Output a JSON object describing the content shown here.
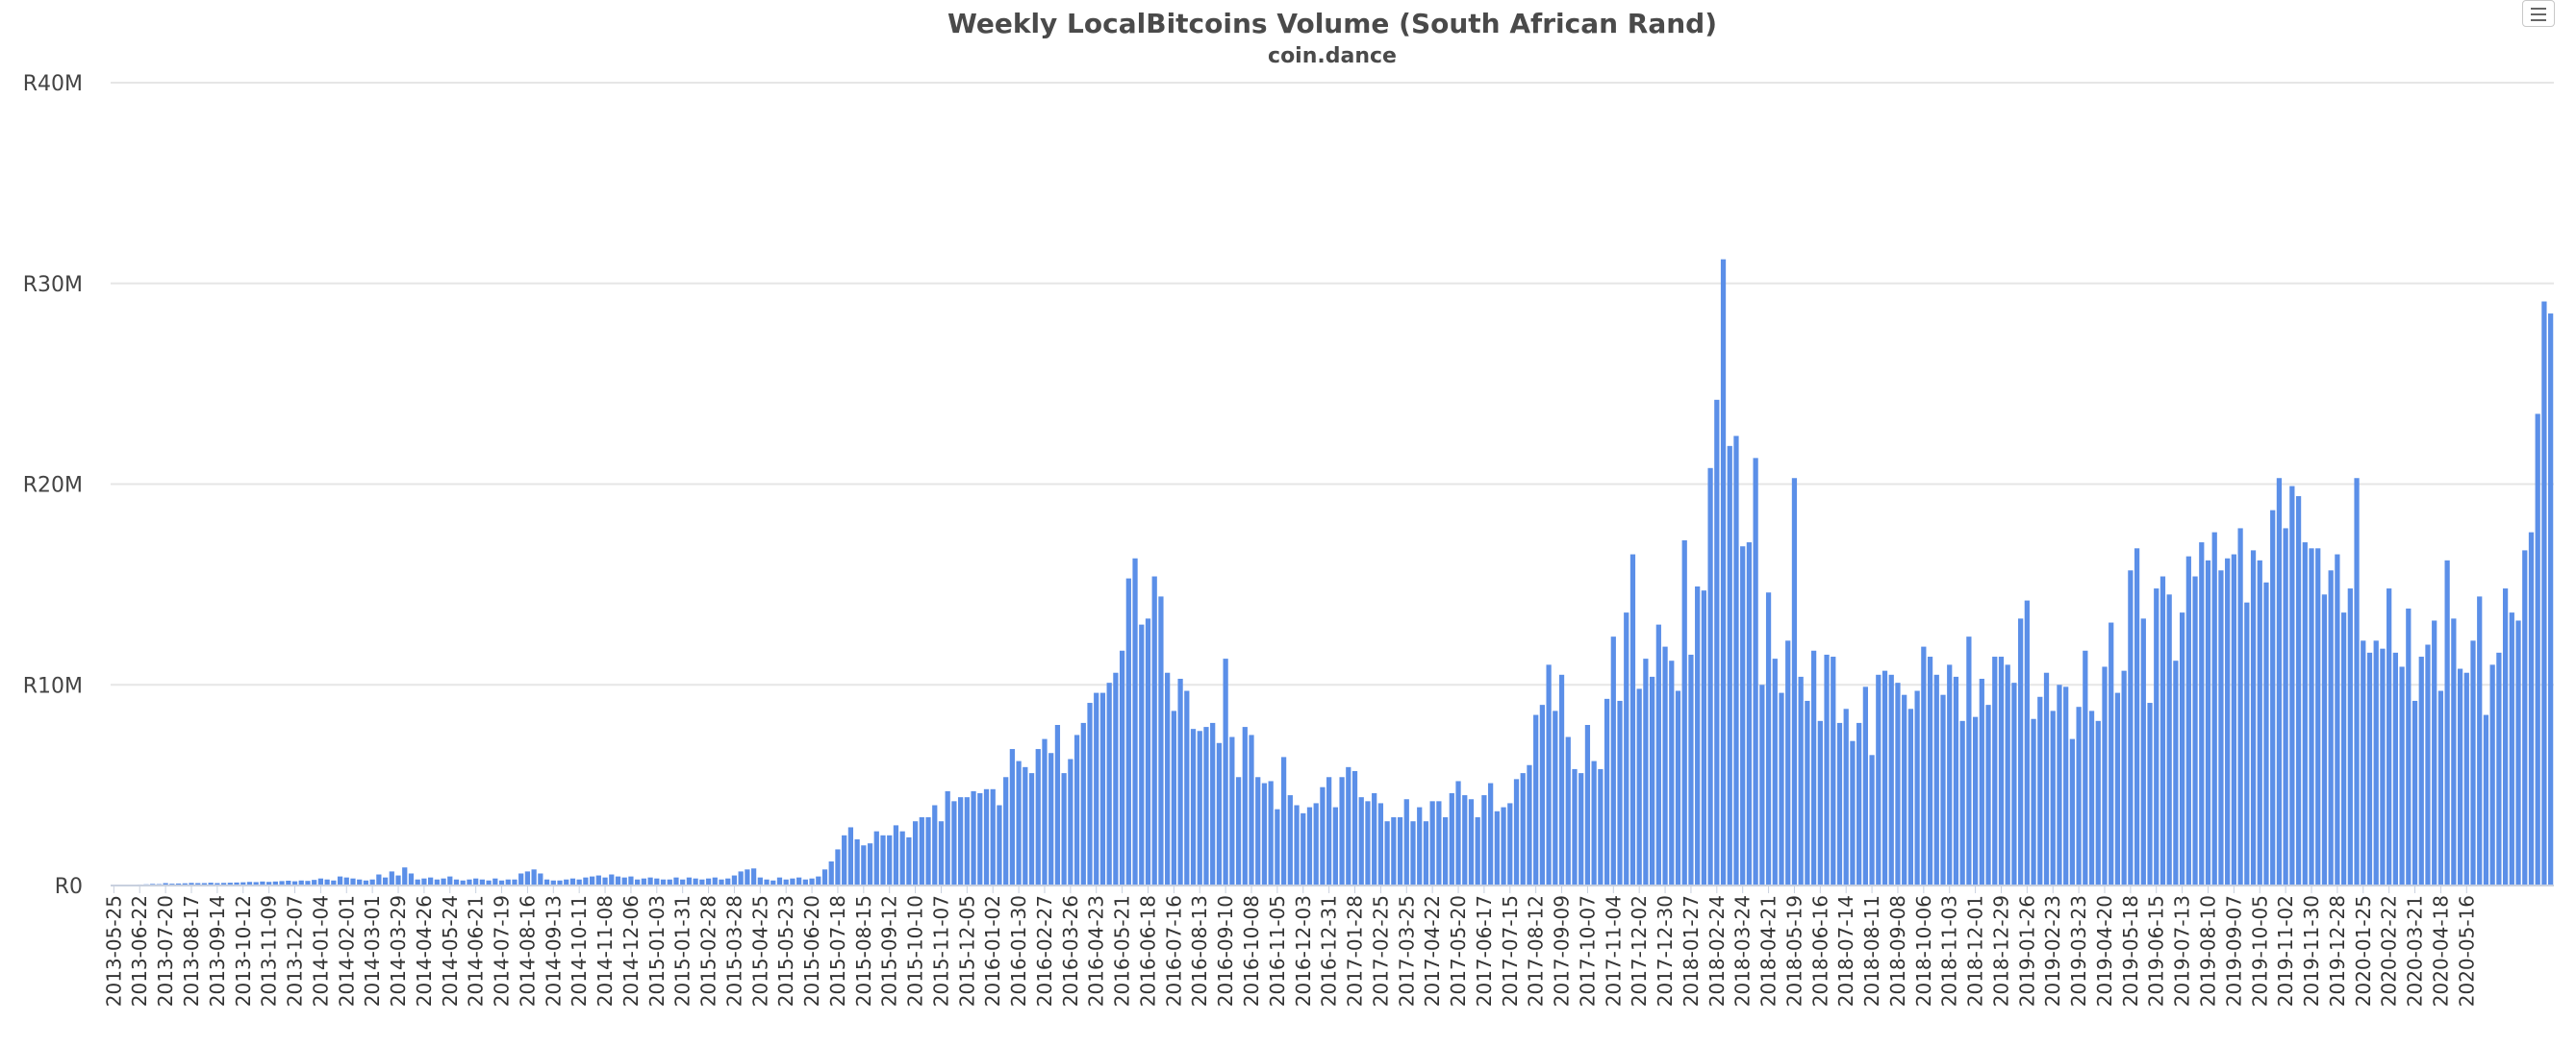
{
  "chart_data": {
    "type": "bar",
    "title": "Weekly LocalBitcoins Volume (South African Rand)",
    "subtitle": "coin.dance",
    "xlabel": "",
    "ylabel": "",
    "ylim": [
      0,
      40000000
    ],
    "yticks": [
      {
        "value": 0,
        "label": "R0"
      },
      {
        "value": 10000000,
        "label": "R10M"
      },
      {
        "value": 20000000,
        "label": "R20M"
      },
      {
        "value": 30000000,
        "label": "R30M"
      },
      {
        "value": 40000000,
        "label": "R40M"
      }
    ],
    "grid": true,
    "legend": "none",
    "bar_color": "#5b8fe8",
    "start_date": "2013-05-25",
    "week_step_days": 7,
    "label_every": 4,
    "categories": [
      "2013-05-25",
      "2013-06-22",
      "2013-07-20",
      "2013-08-17",
      "2013-09-14",
      "2013-10-12",
      "2013-11-09",
      "2013-12-07",
      "2014-01-04",
      "2014-02-01",
      "2014-03-01",
      "2014-03-29",
      "2014-04-26",
      "2014-05-24",
      "2014-06-21",
      "2014-07-19",
      "2014-08-16",
      "2014-09-13",
      "2014-10-11",
      "2014-11-08",
      "2014-12-06",
      "2015-01-03",
      "2015-01-31",
      "2015-02-28",
      "2015-03-28",
      "2015-04-25",
      "2015-05-23",
      "2015-06-20",
      "2015-07-18",
      "2015-08-15",
      "2015-09-12",
      "2015-10-10",
      "2015-11-07",
      "2015-12-05",
      "2016-01-02",
      "2016-01-30",
      "2016-02-27",
      "2016-03-26",
      "2016-04-23",
      "2016-05-21",
      "2016-06-18",
      "2016-07-16",
      "2016-08-13",
      "2016-09-10",
      "2016-10-08",
      "2016-11-05",
      "2016-12-03",
      "2016-12-31",
      "2017-01-28",
      "2017-02-25",
      "2017-03-25",
      "2017-04-22",
      "2017-05-20",
      "2017-06-17",
      "2017-07-15",
      "2017-08-12",
      "2017-09-09",
      "2017-10-07",
      "2017-11-04",
      "2017-12-02",
      "2017-12-30",
      "2018-01-27",
      "2018-02-24",
      "2018-03-24",
      "2018-04-21",
      "2018-05-19",
      "2018-06-16",
      "2018-07-14",
      "2018-08-11",
      "2018-09-08",
      "2018-10-06",
      "2018-11-03",
      "2018-12-01",
      "2018-12-29",
      "2019-01-26",
      "2019-02-23",
      "2019-03-23",
      "2019-04-20",
      "2019-05-18",
      "2019-06-15",
      "2019-07-13",
      "2019-08-10",
      "2019-09-07",
      "2019-10-05",
      "2019-11-02",
      "2019-11-30",
      "2019-12-28",
      "2020-01-25",
      "2020-02-22",
      "2020-03-21",
      "2020-04-18",
      "2020-05-16"
    ],
    "values_millions": [
      0.02,
      0.03,
      0.03,
      0.04,
      0.05,
      0.06,
      0.08,
      0.07,
      0.12,
      0.09,
      0.1,
      0.11,
      0.13,
      0.12,
      0.12,
      0.14,
      0.12,
      0.13,
      0.14,
      0.15,
      0.16,
      0.18,
      0.17,
      0.2,
      0.18,
      0.2,
      0.22,
      0.24,
      0.21,
      0.25,
      0.23,
      0.28,
      0.35,
      0.3,
      0.25,
      0.45,
      0.4,
      0.35,
      0.3,
      0.25,
      0.3,
      0.55,
      0.4,
      0.7,
      0.5,
      0.9,
      0.6,
      0.3,
      0.35,
      0.4,
      0.3,
      0.35,
      0.45,
      0.3,
      0.25,
      0.3,
      0.35,
      0.3,
      0.25,
      0.35,
      0.25,
      0.3,
      0.3,
      0.6,
      0.7,
      0.8,
      0.6,
      0.3,
      0.25,
      0.25,
      0.3,
      0.35,
      0.3,
      0.4,
      0.45,
      0.5,
      0.4,
      0.55,
      0.45,
      0.4,
      0.45,
      0.3,
      0.35,
      0.4,
      0.35,
      0.3,
      0.3,
      0.4,
      0.3,
      0.4,
      0.35,
      0.3,
      0.35,
      0.4,
      0.3,
      0.35,
      0.5,
      0.7,
      0.8,
      0.85,
      0.4,
      0.3,
      0.25,
      0.4,
      0.3,
      0.35,
      0.4,
      0.3,
      0.35,
      0.45,
      0.8,
      1.2,
      1.8,
      2.5,
      2.9,
      2.3,
      2.0,
      2.1,
      2.7,
      2.5,
      2.5,
      3.0,
      2.7,
      2.4,
      3.2,
      3.4,
      3.4,
      4.0,
      3.2,
      4.7,
      4.2,
      4.4,
      4.4,
      4.7,
      4.6,
      4.8,
      4.8,
      4.0,
      5.4,
      6.8,
      6.2,
      5.9,
      5.6,
      6.8,
      7.3,
      6.6,
      8.0,
      5.6,
      6.3,
      7.5,
      8.1,
      9.1,
      9.6,
      9.6,
      10.1,
      10.6,
      11.7,
      15.3,
      16.3,
      13.0,
      13.3,
      15.4,
      14.4,
      10.6,
      8.7,
      10.3,
      9.7,
      7.8,
      7.7,
      7.9,
      8.1,
      7.1,
      11.3,
      7.4,
      5.4,
      7.9,
      7.5,
      5.4,
      5.1,
      5.2,
      3.8,
      6.4,
      4.5,
      4.0,
      3.6,
      3.9,
      4.1,
      4.9,
      5.4,
      3.9,
      5.4,
      5.9,
      5.7,
      4.4,
      4.2,
      4.6,
      4.1,
      3.2,
      3.4,
      3.4,
      4.3,
      3.2,
      3.9,
      3.2,
      4.2,
      4.2,
      3.4,
      4.6,
      5.2,
      4.5,
      4.3,
      3.4,
      4.5,
      5.1,
      3.7,
      3.9,
      4.1,
      5.3,
      5.6,
      6.0,
      8.5,
      9.0,
      11.0,
      8.7,
      10.5,
      7.4,
      5.8,
      5.6,
      8.0,
      6.2,
      5.8,
      9.3,
      12.4,
      9.2,
      13.6,
      16.5,
      9.8,
      11.3,
      10.4,
      13.0,
      11.9,
      11.2,
      9.7,
      17.2,
      11.5,
      14.9,
      14.7,
      20.8,
      24.2,
      31.2,
      21.9,
      22.4,
      16.9,
      17.1,
      21.3,
      10.0,
      14.6,
      11.3,
      9.6,
      12.2,
      20.3,
      10.4,
      9.2,
      11.7,
      8.2,
      11.5,
      11.4,
      8.1,
      8.8,
      7.2,
      8.1,
      9.9,
      6.5,
      10.5,
      10.7,
      10.5,
      10.1,
      9.5,
      8.8,
      9.7,
      11.9,
      11.4,
      10.5,
      9.5,
      11.0,
      10.4,
      8.2,
      12.4,
      8.4,
      10.3,
      9.0,
      11.4,
      11.4,
      11.0,
      10.1,
      13.3,
      14.2,
      8.3,
      9.4,
      10.6,
      8.7,
      10.0,
      9.9,
      7.3,
      8.9,
      11.7,
      8.7,
      8.2,
      10.9,
      13.1,
      9.6,
      10.7,
      15.7,
      16.8,
      13.3,
      9.1,
      14.8,
      15.4,
      14.5,
      11.2,
      13.6,
      16.4,
      15.4,
      17.1,
      16.2,
      17.6,
      15.7,
      16.3,
      16.5,
      17.8,
      14.1,
      16.7,
      16.2,
      15.1,
      18.7,
      20.3,
      17.8,
      19.9,
      19.4,
      17.1,
      16.8,
      16.8,
      14.5,
      15.7,
      16.5,
      13.6,
      14.8,
      20.3,
      12.2,
      11.6,
      12.2,
      11.8,
      14.8,
      11.6,
      10.9,
      13.8,
      9.2,
      11.4,
      12.0,
      13.2,
      9.7,
      16.2,
      13.3,
      10.8,
      10.6,
      12.2,
      14.4,
      8.5,
      11.0,
      11.6,
      14.8,
      13.6,
      13.2,
      16.7,
      17.6,
      23.5,
      29.1,
      28.5
    ]
  }
}
